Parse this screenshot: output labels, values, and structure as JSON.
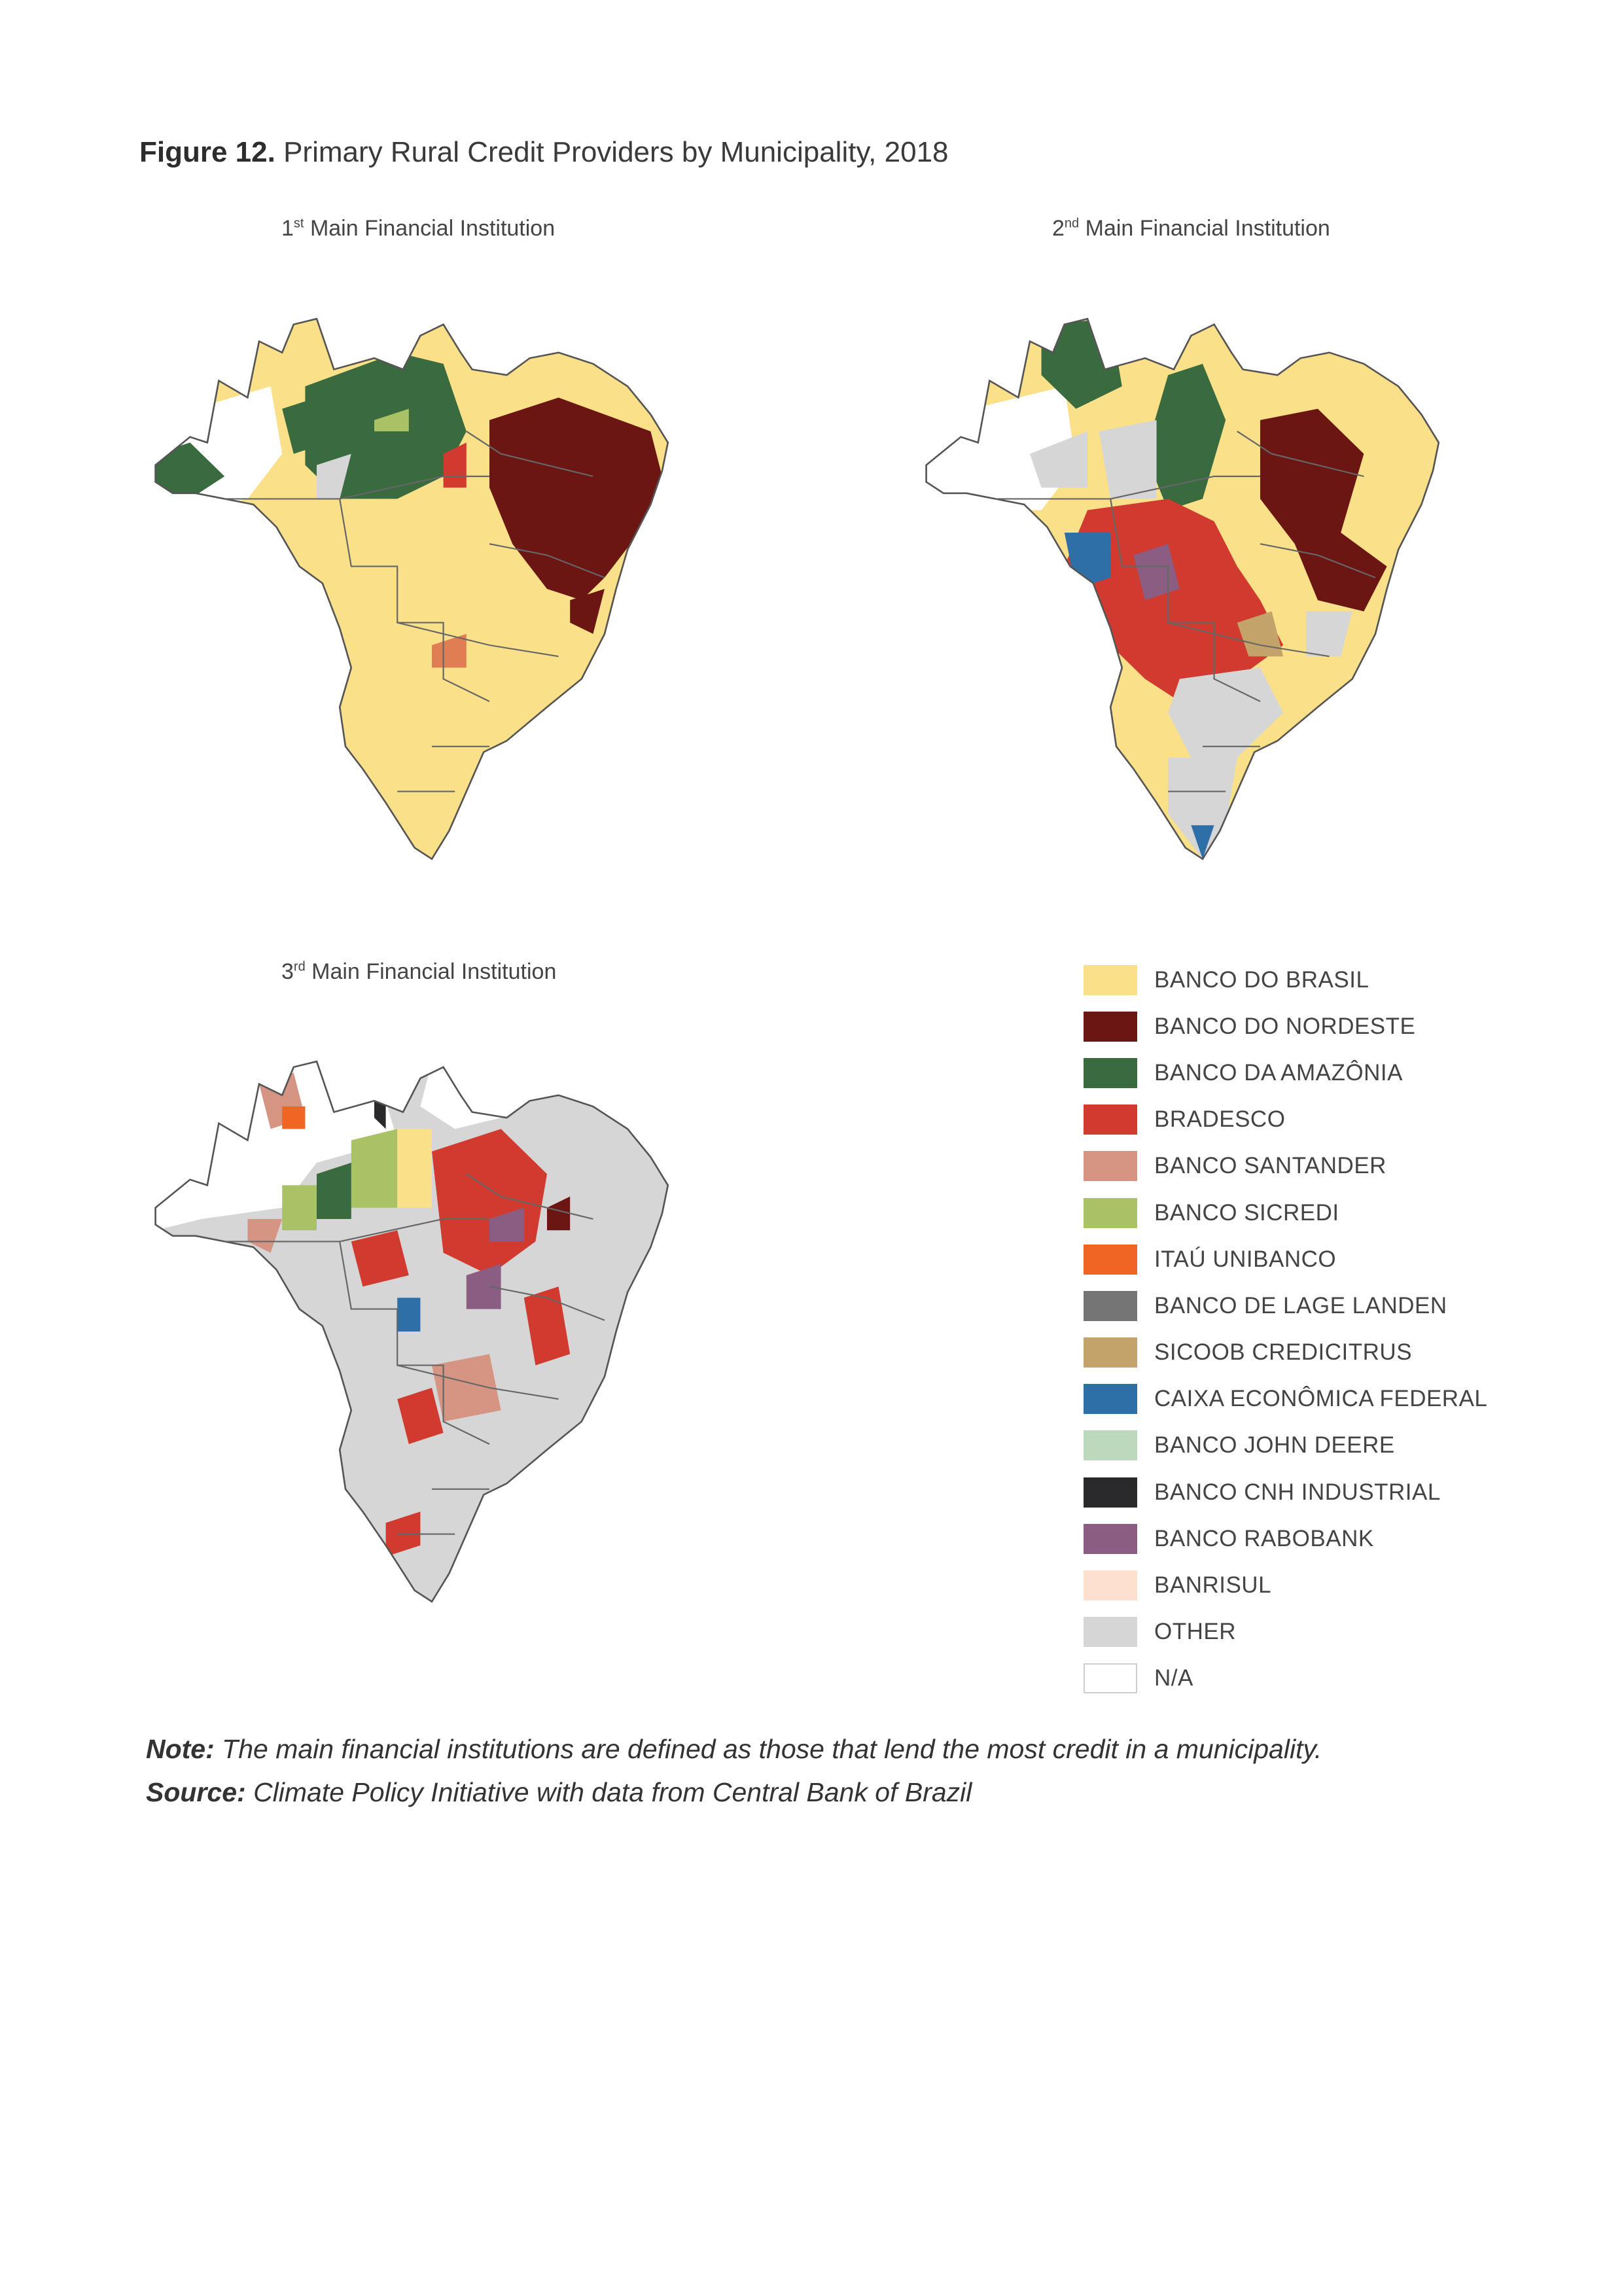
{
  "figure": {
    "label": "Figure 12.",
    "title": "Primary Rural Credit Providers by Municipality, 2018"
  },
  "maps": [
    {
      "ordinal": "1",
      "suffix": "st",
      "title": "Main Financial Institution"
    },
    {
      "ordinal": "2",
      "suffix": "nd",
      "title": "Main Financial Institution"
    },
    {
      "ordinal": "3",
      "suffix": "rd",
      "title": "Main Financial Institution"
    }
  ],
  "legend": [
    {
      "label": "BANCO DO BRASIL",
      "color": "#fbe08a"
    },
    {
      "label": "BANCO DO NORDESTE",
      "color": "#6b1612"
    },
    {
      "label": "BANCO DA AMAZÔNIA",
      "color": "#396b3f"
    },
    {
      "label": "BRADESCO",
      "color": "#d13a2f"
    },
    {
      "label": "BANCO SANTANDER",
      "color": "#d69482"
    },
    {
      "label": "BANCO SICREDI",
      "color": "#a9c265"
    },
    {
      "label": "ITAÚ UNIBANCO",
      "color": "#f06424"
    },
    {
      "label": "BANCO DE LAGE LANDEN",
      "color": "#757575"
    },
    {
      "label": "SICOOB CREDICITRUS",
      "color": "#c4a36b"
    },
    {
      "label": "CAIXA ECONÔMICA FEDERAL",
      "color": "#2e6fa7"
    },
    {
      "label": "BANCO JOHN DEERE",
      "color": "#bcd9bd"
    },
    {
      "label": "BANCO CNH INDUSTRIAL",
      "color": "#2a2a2c"
    },
    {
      "label": "BANCO RABOBANK",
      "color": "#8b5d82"
    },
    {
      "label": "BANRISUL",
      "color": "#fde0cf"
    },
    {
      "label": "OTHER",
      "color": "#d6d6d6"
    },
    {
      "label": "N/A",
      "color": "#ffffff"
    }
  ],
  "note": {
    "label": "Note:",
    "text": "The main financial institutions are defined as those that lend the most credit in a municipality."
  },
  "source": {
    "label": "Source:",
    "text": "Climate Policy Initiative with data from Central Bank of Brazil"
  }
}
